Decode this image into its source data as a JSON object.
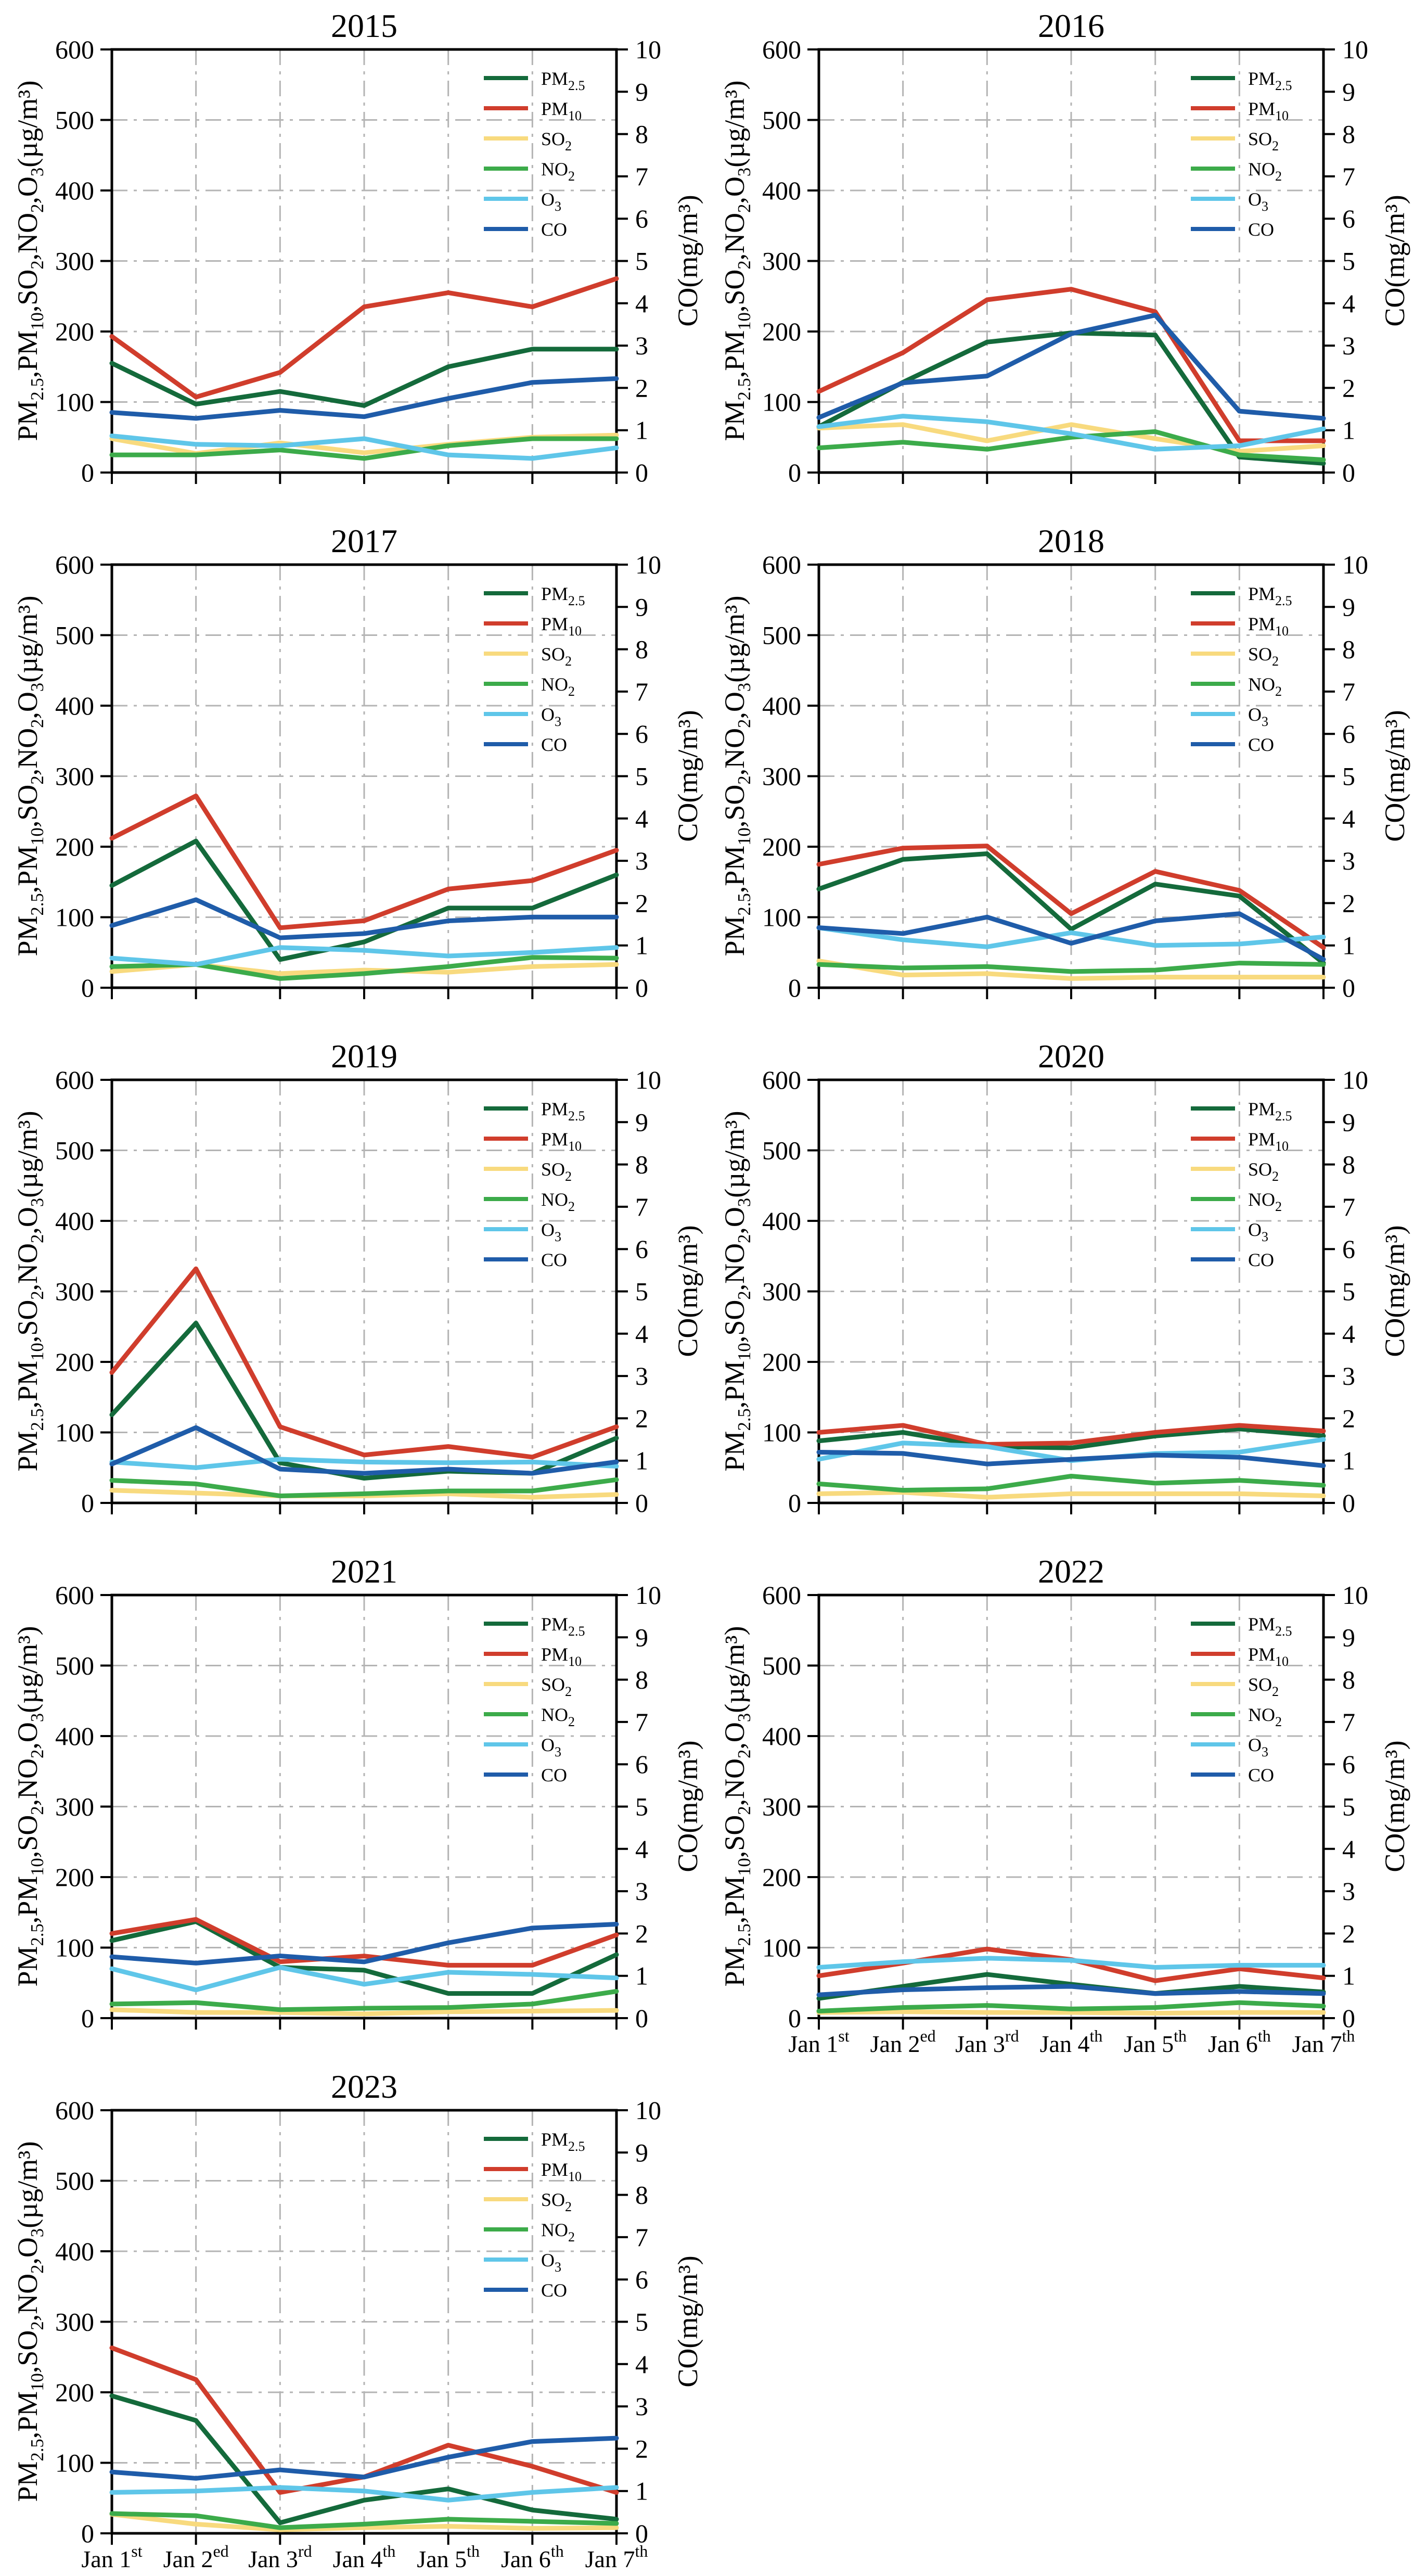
{
  "page": {
    "background": "#ffffff"
  },
  "shared": {
    "ylabel_left_plain": "PM2.5,PM10,SO2,NO2,O3(µg/m³)",
    "ylabel_left_segments": [
      {
        "t": "PM"
      },
      {
        "sub": "2.5"
      },
      {
        "t": ",PM"
      },
      {
        "sub": "10"
      },
      {
        "t": ",SO"
      },
      {
        "sub": "2"
      },
      {
        "t": ",NO"
      },
      {
        "sub": "2"
      },
      {
        "t": ",O"
      },
      {
        "sub": "3"
      },
      {
        "t": "(µg/m³)"
      }
    ],
    "ylabel_right": "CO(mg/m³)",
    "left_axis": {
      "min": 0,
      "max": 600,
      "ticks": [
        0,
        100,
        200,
        300,
        400,
        500,
        600
      ]
    },
    "right_axis": {
      "min": 0,
      "max": 10,
      "ticks": [
        0,
        1,
        2,
        3,
        4,
        5,
        6,
        7,
        8,
        9,
        10
      ]
    },
    "x_ticklabels": [
      {
        "base": "Jan 1",
        "sup": "st"
      },
      {
        "base": "Jan 2",
        "sup": "ed"
      },
      {
        "base": "Jan 3",
        "sup": "rd"
      },
      {
        "base": "Jan 4",
        "sup": "th"
      },
      {
        "base": "Jan 5",
        "sup": "th"
      },
      {
        "base": "Jan 6",
        "sup": "th"
      },
      {
        "base": "Jan 7",
        "sup": "th"
      }
    ],
    "grid_color": "#b4b4b4",
    "legend_position": "upper right",
    "legend": [
      {
        "name": "PM2.5",
        "color": "#146a3b",
        "segments": [
          {
            "t": "PM"
          },
          {
            "sub": "2.5"
          }
        ]
      },
      {
        "name": "PM10",
        "color": "#d03d2c",
        "segments": [
          {
            "t": "PM"
          },
          {
            "sub": "10"
          }
        ]
      },
      {
        "name": "SO2",
        "color": "#f8da7e",
        "segments": [
          {
            "t": "SO"
          },
          {
            "sub": "2"
          }
        ]
      },
      {
        "name": "NO2",
        "color": "#3cab4a",
        "segments": [
          {
            "t": "NO"
          },
          {
            "sub": "2"
          }
        ]
      },
      {
        "name": "O3",
        "color": "#5fc6e9",
        "segments": [
          {
            "t": "O"
          },
          {
            "sub": "3"
          }
        ]
      },
      {
        "name": "CO",
        "color": "#1f5ca9",
        "segments": [
          {
            "t": "CO"
          }
        ]
      }
    ]
  },
  "chart_data": [
    {
      "type": "line",
      "title": "2015",
      "grid": true,
      "show_x_labels": false,
      "categories": [
        "Jan 1st",
        "Jan 2ed",
        "Jan 3rd",
        "Jan 4th",
        "Jan 5th",
        "Jan 6th",
        "Jan 7th"
      ],
      "ylim_left": [
        0,
        600
      ],
      "ylim_right": [
        0,
        10
      ],
      "series": [
        {
          "name": "PM2.5",
          "axis": "left",
          "unit": "µg/m³",
          "values": [
            155,
            97,
            115,
            95,
            150,
            175,
            175
          ]
        },
        {
          "name": "PM10",
          "axis": "left",
          "unit": "µg/m³",
          "values": [
            193,
            107,
            142,
            235,
            255,
            235,
            275
          ]
        },
        {
          "name": "SO2",
          "axis": "left",
          "unit": "µg/m³",
          "values": [
            48,
            27,
            42,
            28,
            40,
            50,
            53
          ]
        },
        {
          "name": "NO2",
          "axis": "left",
          "unit": "µg/m³",
          "values": [
            25,
            25,
            32,
            20,
            38,
            48,
            48
          ]
        },
        {
          "name": "O3",
          "axis": "left",
          "unit": "µg/m³",
          "values": [
            52,
            40,
            38,
            48,
            25,
            20,
            35
          ]
        },
        {
          "name": "CO",
          "axis": "right",
          "unit": "mg/m³",
          "values": [
            1.42,
            1.28,
            1.47,
            1.32,
            1.75,
            2.13,
            2.22
          ]
        }
      ]
    },
    {
      "type": "line",
      "title": "2016",
      "grid": true,
      "show_x_labels": false,
      "categories": [
        "Jan 1st",
        "Jan 2ed",
        "Jan 3rd",
        "Jan 4th",
        "Jan 5th",
        "Jan 6th",
        "Jan 7th"
      ],
      "ylim_left": [
        0,
        600
      ],
      "ylim_right": [
        0,
        10
      ],
      "series": [
        {
          "name": "PM2.5",
          "axis": "left",
          "unit": "µg/m³",
          "values": [
            65,
            128,
            185,
            198,
            195,
            22,
            13
          ]
        },
        {
          "name": "PM10",
          "axis": "left",
          "unit": "µg/m³",
          "values": [
            115,
            170,
            245,
            260,
            228,
            45,
            45
          ]
        },
        {
          "name": "SO2",
          "axis": "left",
          "unit": "µg/m³",
          "values": [
            63,
            68,
            45,
            68,
            48,
            30,
            38
          ]
        },
        {
          "name": "NO2",
          "axis": "left",
          "unit": "µg/m³",
          "values": [
            35,
            43,
            33,
            50,
            58,
            25,
            18
          ]
        },
        {
          "name": "O3",
          "axis": "left",
          "unit": "µg/m³",
          "values": [
            65,
            80,
            72,
            55,
            33,
            38,
            62
          ]
        },
        {
          "name": "CO",
          "axis": "right",
          "unit": "mg/m³",
          "values": [
            1.3,
            2.12,
            2.28,
            3.28,
            3.72,
            1.45,
            1.28
          ]
        }
      ]
    },
    {
      "type": "line",
      "title": "2017",
      "grid": true,
      "show_x_labels": false,
      "categories": [
        "Jan 1st",
        "Jan 2ed",
        "Jan 3rd",
        "Jan 4th",
        "Jan 5th",
        "Jan 6th",
        "Jan 7th"
      ],
      "ylim_left": [
        0,
        600
      ],
      "ylim_right": [
        0,
        10
      ],
      "series": [
        {
          "name": "PM2.5",
          "axis": "left",
          "unit": "µg/m³",
          "values": [
            145,
            208,
            40,
            65,
            113,
            113,
            160
          ]
        },
        {
          "name": "PM10",
          "axis": "left",
          "unit": "µg/m³",
          "values": [
            212,
            272,
            85,
            95,
            140,
            152,
            195
          ]
        },
        {
          "name": "SO2",
          "axis": "left",
          "unit": "µg/m³",
          "values": [
            23,
            33,
            20,
            25,
            22,
            30,
            33
          ]
        },
        {
          "name": "NO2",
          "axis": "left",
          "unit": "µg/m³",
          "values": [
            30,
            33,
            13,
            20,
            30,
            43,
            42
          ]
        },
        {
          "name": "O3",
          "axis": "left",
          "unit": "µg/m³",
          "values": [
            42,
            33,
            57,
            53,
            45,
            50,
            57
          ]
        },
        {
          "name": "CO",
          "axis": "right",
          "unit": "mg/m³",
          "values": [
            1.47,
            2.08,
            1.18,
            1.28,
            1.58,
            1.67,
            1.67
          ]
        }
      ]
    },
    {
      "type": "line",
      "title": "2018",
      "grid": true,
      "show_x_labels": false,
      "categories": [
        "Jan 1st",
        "Jan 2ed",
        "Jan 3rd",
        "Jan 4th",
        "Jan 5th",
        "Jan 6th",
        "Jan 7th"
      ],
      "ylim_left": [
        0,
        600
      ],
      "ylim_right": [
        0,
        10
      ],
      "series": [
        {
          "name": "PM2.5",
          "axis": "left",
          "unit": "µg/m³",
          "values": [
            140,
            182,
            190,
            83,
            147,
            130,
            35
          ]
        },
        {
          "name": "PM10",
          "axis": "left",
          "unit": "µg/m³",
          "values": [
            175,
            198,
            201,
            105,
            165,
            138,
            57
          ]
        },
        {
          "name": "SO2",
          "axis": "left",
          "unit": "µg/m³",
          "values": [
            38,
            18,
            20,
            13,
            15,
            15,
            15
          ]
        },
        {
          "name": "NO2",
          "axis": "left",
          "unit": "µg/m³",
          "values": [
            33,
            28,
            30,
            23,
            25,
            35,
            33
          ]
        },
        {
          "name": "O3",
          "axis": "left",
          "unit": "µg/m³",
          "values": [
            85,
            68,
            58,
            78,
            60,
            62,
            72
          ]
        },
        {
          "name": "CO",
          "axis": "right",
          "unit": "mg/m³",
          "values": [
            1.42,
            1.28,
            1.67,
            1.05,
            1.58,
            1.75,
            0.67
          ]
        }
      ]
    },
    {
      "type": "line",
      "title": "2019",
      "grid": true,
      "show_x_labels": false,
      "categories": [
        "Jan 1st",
        "Jan 2ed",
        "Jan 3rd",
        "Jan 4th",
        "Jan 5th",
        "Jan 6th",
        "Jan 7th"
      ],
      "ylim_left": [
        0,
        600
      ],
      "ylim_right": [
        0,
        10
      ],
      "series": [
        {
          "name": "PM2.5",
          "axis": "left",
          "unit": "µg/m³",
          "values": [
            125,
            255,
            57,
            35,
            45,
            42,
            92
          ]
        },
        {
          "name": "PM10",
          "axis": "left",
          "unit": "µg/m³",
          "values": [
            185,
            332,
            108,
            68,
            80,
            65,
            108
          ]
        },
        {
          "name": "SO2",
          "axis": "left",
          "unit": "µg/m³",
          "values": [
            18,
            14,
            10,
            10,
            13,
            8,
            12
          ]
        },
        {
          "name": "NO2",
          "axis": "left",
          "unit": "µg/m³",
          "values": [
            32,
            27,
            10,
            13,
            17,
            17,
            33
          ]
        },
        {
          "name": "O3",
          "axis": "left",
          "unit": "µg/m³",
          "values": [
            58,
            50,
            62,
            58,
            57,
            58,
            52
          ]
        },
        {
          "name": "CO",
          "axis": "right",
          "unit": "mg/m³",
          "values": [
            0.92,
            1.78,
            0.8,
            0.7,
            0.8,
            0.7,
            0.97
          ]
        }
      ]
    },
    {
      "type": "line",
      "title": "2020",
      "grid": true,
      "show_x_labels": false,
      "categories": [
        "Jan 1st",
        "Jan 2ed",
        "Jan 3rd",
        "Jan 4th",
        "Jan 5th",
        "Jan 6th",
        "Jan 7th"
      ],
      "ylim_left": [
        0,
        600
      ],
      "ylim_right": [
        0,
        10
      ],
      "series": [
        {
          "name": "PM2.5",
          "axis": "left",
          "unit": "µg/m³",
          "values": [
            88,
            100,
            80,
            78,
            95,
            105,
            95
          ]
        },
        {
          "name": "PM10",
          "axis": "left",
          "unit": "µg/m³",
          "values": [
            100,
            110,
            83,
            85,
            100,
            110,
            102
          ]
        },
        {
          "name": "SO2",
          "axis": "left",
          "unit": "µg/m³",
          "values": [
            13,
            15,
            8,
            13,
            13,
            13,
            10
          ]
        },
        {
          "name": "NO2",
          "axis": "left",
          "unit": "µg/m³",
          "values": [
            27,
            18,
            20,
            38,
            28,
            32,
            25
          ]
        },
        {
          "name": "O3",
          "axis": "left",
          "unit": "µg/m³",
          "values": [
            62,
            85,
            80,
            60,
            70,
            72,
            90
          ]
        },
        {
          "name": "CO",
          "axis": "right",
          "unit": "mg/m³",
          "values": [
            1.2,
            1.17,
            0.92,
            1.03,
            1.13,
            1.08,
            0.88
          ]
        }
      ]
    },
    {
      "type": "line",
      "title": "2021",
      "grid": true,
      "show_x_labels": false,
      "categories": [
        "Jan 1st",
        "Jan 2ed",
        "Jan 3rd",
        "Jan 4th",
        "Jan 5th",
        "Jan 6th",
        "Jan 7th"
      ],
      "ylim_left": [
        0,
        600
      ],
      "ylim_right": [
        0,
        10
      ],
      "series": [
        {
          "name": "PM2.5",
          "axis": "left",
          "unit": "µg/m³",
          "values": [
            110,
            137,
            72,
            68,
            35,
            35,
            90
          ]
        },
        {
          "name": "PM10",
          "axis": "left",
          "unit": "µg/m³",
          "values": [
            120,
            140,
            80,
            88,
            75,
            75,
            118
          ]
        },
        {
          "name": "SO2",
          "axis": "left",
          "unit": "µg/m³",
          "values": [
            12,
            8,
            8,
            6,
            9,
            10,
            11
          ]
        },
        {
          "name": "NO2",
          "axis": "left",
          "unit": "µg/m³",
          "values": [
            20,
            22,
            12,
            14,
            15,
            20,
            38
          ]
        },
        {
          "name": "O3",
          "axis": "left",
          "unit": "µg/m³",
          "values": [
            70,
            40,
            72,
            48,
            65,
            62,
            57
          ]
        },
        {
          "name": "CO",
          "axis": "right",
          "unit": "mg/m³",
          "values": [
            1.45,
            1.3,
            1.47,
            1.33,
            1.78,
            2.13,
            2.22
          ]
        }
      ]
    },
    {
      "type": "line",
      "title": "2022",
      "grid": true,
      "show_x_labels": true,
      "categories": [
        "Jan 1st",
        "Jan 2ed",
        "Jan 3rd",
        "Jan 4th",
        "Jan 5th",
        "Jan 6th",
        "Jan 7th"
      ],
      "ylim_left": [
        0,
        600
      ],
      "ylim_right": [
        0,
        10
      ],
      "series": [
        {
          "name": "PM2.5",
          "axis": "left",
          "unit": "µg/m³",
          "values": [
            28,
            45,
            62,
            48,
            35,
            45,
            37
          ]
        },
        {
          "name": "PM10",
          "axis": "left",
          "unit": "µg/m³",
          "values": [
            60,
            78,
            98,
            83,
            53,
            70,
            57
          ]
        },
        {
          "name": "SO2",
          "axis": "left",
          "unit": "µg/m³",
          "values": [
            8,
            9,
            8,
            8,
            7,
            8,
            8
          ]
        },
        {
          "name": "NO2",
          "axis": "left",
          "unit": "µg/m³",
          "values": [
            10,
            15,
            18,
            13,
            15,
            22,
            17
          ]
        },
        {
          "name": "O3",
          "axis": "left",
          "unit": "µg/m³",
          "values": [
            72,
            80,
            85,
            82,
            72,
            75,
            75
          ]
        },
        {
          "name": "CO",
          "axis": "right",
          "unit": "mg/m³",
          "values": [
            0.55,
            0.67,
            0.72,
            0.75,
            0.58,
            0.63,
            0.58
          ]
        }
      ]
    },
    {
      "type": "line",
      "title": "2023",
      "grid": true,
      "show_x_labels": true,
      "categories": [
        "Jan 1st",
        "Jan 2ed",
        "Jan 3rd",
        "Jan 4th",
        "Jan 5th",
        "Jan 6th",
        "Jan 7th"
      ],
      "ylim_left": [
        0,
        600
      ],
      "ylim_right": [
        0,
        10
      ],
      "series": [
        {
          "name": "PM2.5",
          "axis": "left",
          "unit": "µg/m³",
          "values": [
            195,
            160,
            15,
            47,
            63,
            33,
            20
          ]
        },
        {
          "name": "PM10",
          "axis": "left",
          "unit": "µg/m³",
          "values": [
            263,
            218,
            58,
            80,
            125,
            95,
            58
          ]
        },
        {
          "name": "SO2",
          "axis": "left",
          "unit": "µg/m³",
          "values": [
            27,
            13,
            5,
            8,
            10,
            7,
            8
          ]
        },
        {
          "name": "NO2",
          "axis": "left",
          "unit": "µg/m³",
          "values": [
            28,
            25,
            8,
            13,
            20,
            17,
            14
          ]
        },
        {
          "name": "O3",
          "axis": "left",
          "unit": "µg/m³",
          "values": [
            58,
            60,
            65,
            60,
            47,
            58,
            65
          ]
        },
        {
          "name": "CO",
          "axis": "right",
          "unit": "mg/m³",
          "values": [
            1.45,
            1.3,
            1.5,
            1.33,
            1.8,
            2.17,
            2.25
          ]
        }
      ]
    }
  ]
}
